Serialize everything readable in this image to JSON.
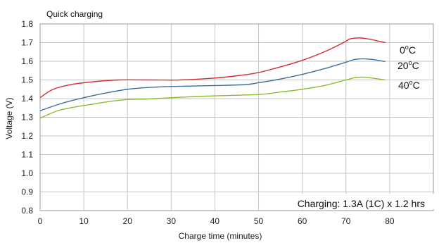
{
  "chart_data": {
    "type": "line",
    "title": "Quick charging",
    "xlabel": "Charge time (minutes)",
    "ylabel": "Voltage (V)",
    "xlim": [
      0,
      90
    ],
    "ylim": [
      0.8,
      1.8
    ],
    "xticks": [
      0,
      10,
      20,
      30,
      40,
      50,
      60,
      70,
      80
    ],
    "yticks": [
      0.8,
      0.9,
      1.0,
      1.1,
      1.2,
      1.3,
      1.4,
      1.5,
      1.6,
      1.7,
      1.8
    ],
    "grid": true,
    "annotation": "Charging: 1.3A (1C) x 1.2 hrs",
    "series": [
      {
        "name": "0°C",
        "label_main": "0",
        "label_unit": "C",
        "color": "#d03030",
        "x": [
          0,
          3,
          7,
          12,
          18,
          25,
          32,
          40,
          46,
          50,
          55,
          60,
          65,
          69,
          71,
          73,
          75,
          79
        ],
        "y": [
          1.405,
          1.45,
          1.475,
          1.49,
          1.5,
          1.5,
          1.5,
          1.51,
          1.525,
          1.54,
          1.57,
          1.605,
          1.65,
          1.695,
          1.72,
          1.725,
          1.72,
          1.7
        ]
      },
      {
        "name": "20°C",
        "label_main": "20",
        "label_unit": "C",
        "color": "#3a6fa0",
        "x": [
          0,
          5,
          10,
          15,
          20,
          25,
          30,
          40,
          47,
          50,
          55,
          60,
          65,
          70,
          72,
          74,
          76,
          79
        ],
        "y": [
          1.335,
          1.375,
          1.405,
          1.43,
          1.45,
          1.46,
          1.465,
          1.47,
          1.475,
          1.485,
          1.505,
          1.53,
          1.56,
          1.595,
          1.61,
          1.613,
          1.61,
          1.598
        ]
      },
      {
        "name": "40°C",
        "label_main": "40",
        "label_unit": "C",
        "color": "#8cbb30",
        "x": [
          0,
          4,
          8,
          12,
          16,
          20,
          25,
          30,
          40,
          50,
          55,
          60,
          65,
          70,
          72,
          74,
          76,
          79
        ],
        "y": [
          1.295,
          1.335,
          1.355,
          1.37,
          1.385,
          1.395,
          1.398,
          1.405,
          1.415,
          1.422,
          1.435,
          1.45,
          1.47,
          1.5,
          1.512,
          1.515,
          1.51,
          1.5
        ]
      }
    ]
  }
}
